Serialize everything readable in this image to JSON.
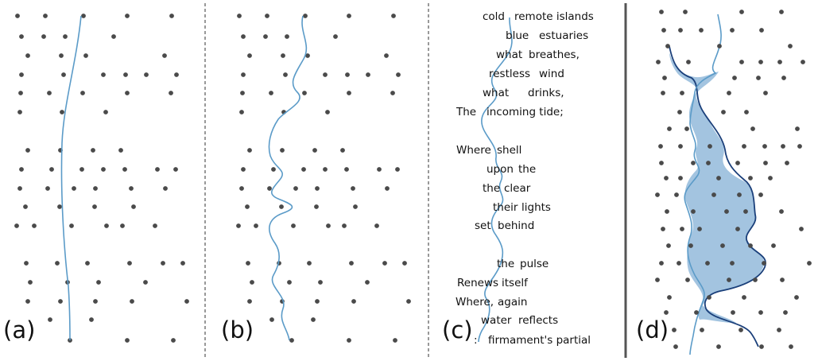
{
  "panels": [
    {
      "id": "a",
      "label": "(a)"
    },
    {
      "id": "b",
      "label": "(b)"
    },
    {
      "id": "c",
      "label": "(c)"
    },
    {
      "id": "d",
      "label": "(d)"
    }
  ],
  "poem_lines": [
    [
      "cold",
      "remote islands"
    ],
    [
      "blue",
      "estuaries"
    ],
    [
      "what",
      "breathes,"
    ],
    [
      "restless",
      "wind"
    ],
    [
      "what",
      "drinks,"
    ],
    [
      "The",
      "incoming tide;"
    ],
    [
      "",
      ""
    ],
    [
      "Where",
      "shell"
    ],
    [
      "upon",
      "the"
    ],
    [
      "the",
      "clear"
    ],
    [
      "their",
      "lights"
    ],
    [
      "set",
      "behind"
    ],
    [
      "",
      ""
    ],
    [
      "the",
      "pulse"
    ],
    [
      "Renews",
      "itself"
    ],
    [
      "Where,",
      "again"
    ],
    [
      "water",
      "reflects"
    ],
    [
      ":",
      "firmament's partial"
    ]
  ],
  "colors": {
    "curve_light": "#5b9bc8",
    "curve_dark": "#1a3f7a",
    "gap_fill": "#a3c4e0",
    "dot": "#4a4a4a"
  }
}
